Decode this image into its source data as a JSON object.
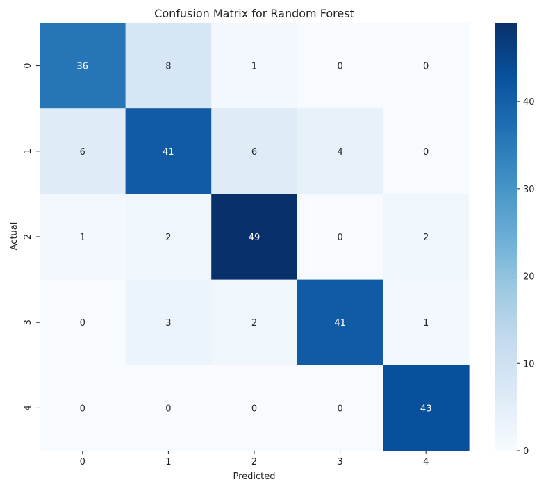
{
  "chart_data": {
    "type": "heatmap",
    "title": "Confusion Matrix for Random Forest",
    "xlabel": "Predicted",
    "ylabel": "Actual",
    "x_categories": [
      "0",
      "1",
      "2",
      "3",
      "4"
    ],
    "y_categories": [
      "0",
      "1",
      "2",
      "3",
      "4"
    ],
    "values": [
      [
        36,
        8,
        1,
        0,
        0
      ],
      [
        6,
        41,
        6,
        4,
        0
      ],
      [
        1,
        2,
        49,
        0,
        2
      ],
      [
        0,
        3,
        2,
        41,
        1
      ],
      [
        0,
        0,
        0,
        0,
        43
      ]
    ],
    "colormap": "Blues",
    "color_range": [
      0,
      49
    ],
    "colorbar_ticks": [
      0,
      10,
      20,
      30,
      40
    ],
    "annotations": true,
    "grid": false,
    "legend": "colorbar-right"
  }
}
